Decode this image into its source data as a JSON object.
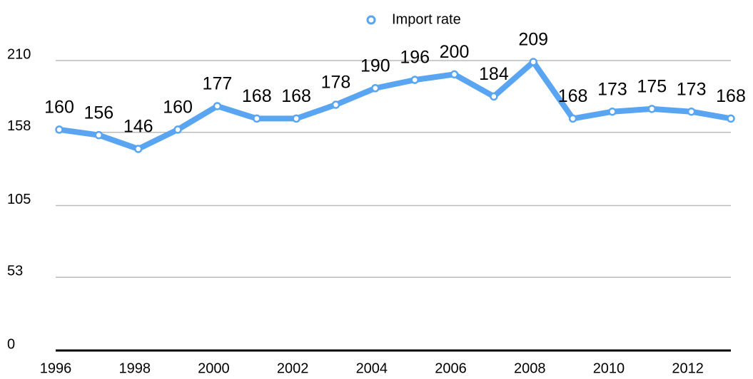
{
  "chart_data": {
    "type": "line",
    "x": [
      1996,
      1997,
      1998,
      1999,
      2000,
      2001,
      2002,
      2003,
      2004,
      2005,
      2006,
      2007,
      2008,
      2009,
      2010,
      2011,
      2012,
      2013
    ],
    "series": [
      {
        "name": "Import rate",
        "color": "#5aa5f2",
        "values": [
          160,
          156,
          146,
          160,
          177,
          168,
          168,
          178,
          190,
          196,
          200,
          184,
          209,
          168,
          173,
          175,
          173,
          168
        ]
      }
    ],
    "xlim": [
      1996,
      2013
    ],
    "xticks": [
      1996,
      1998,
      2000,
      2002,
      2004,
      2006,
      2008,
      2010,
      2012
    ],
    "ylim": [
      0,
      210
    ],
    "yticks": [
      0,
      53,
      105,
      158,
      210
    ],
    "grid": true,
    "legend": "top"
  }
}
